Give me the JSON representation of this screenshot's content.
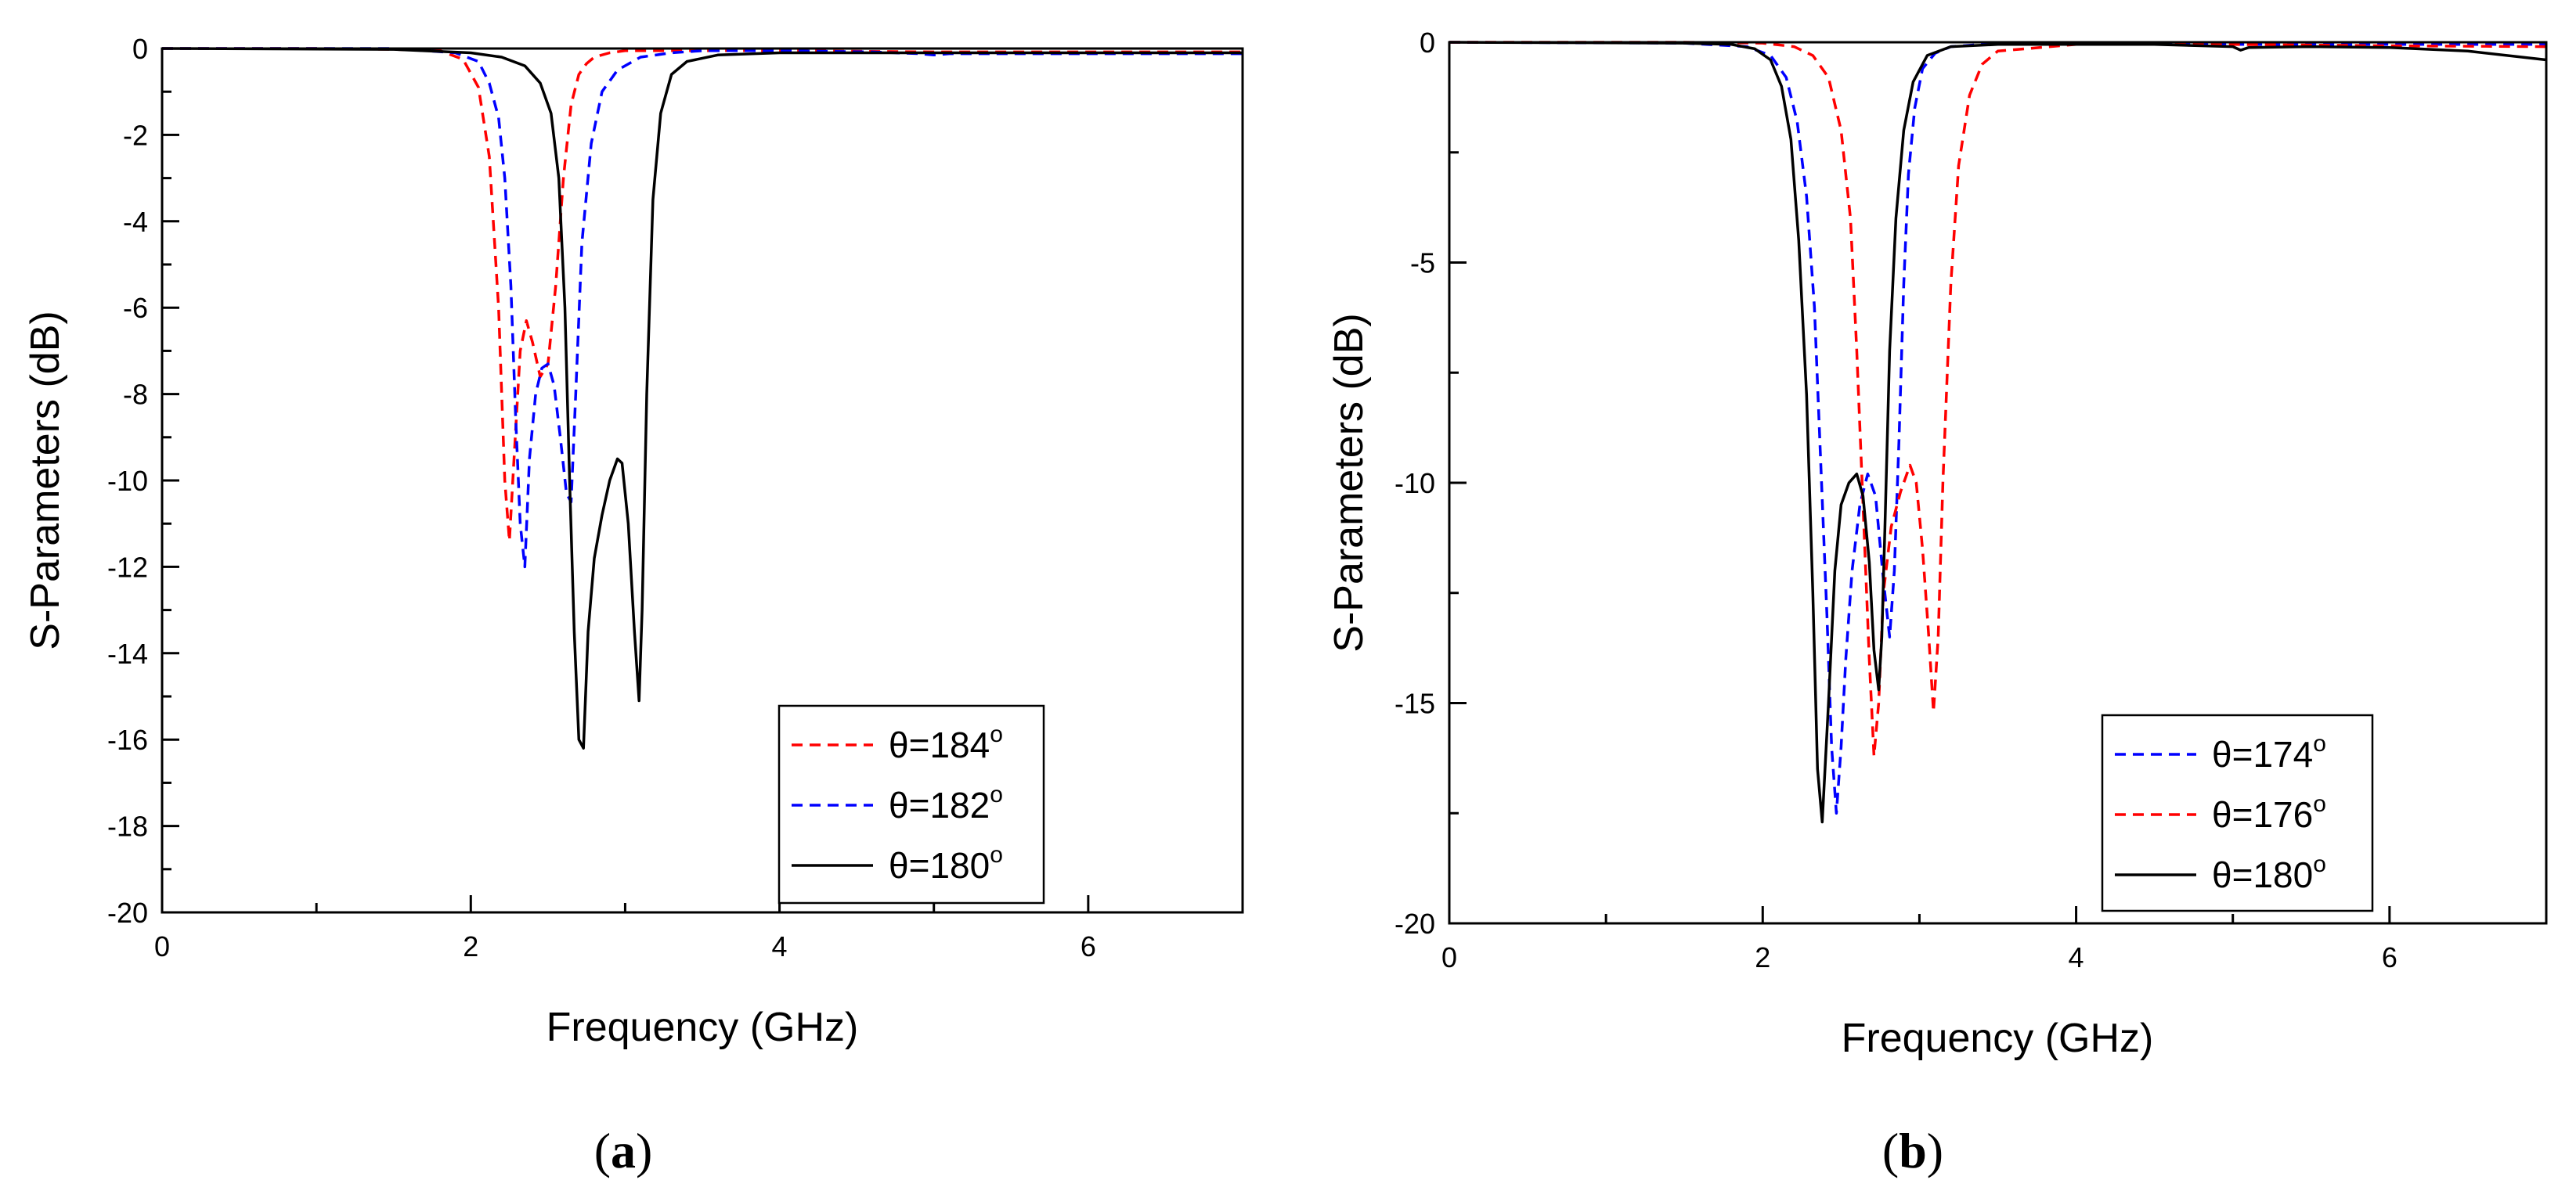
{
  "colors": {
    "red": "#ff0000",
    "blue": "#0000ff",
    "black": "#000000"
  },
  "chart_data": [
    {
      "type": "line",
      "panel": "a",
      "caption": {
        "open": "(",
        "letter": "a",
        "close": ")"
      },
      "title": "",
      "xlabel": "Frequency (GHz)",
      "ylabel": "S-Parameters (dB)",
      "xlim": [
        0,
        7
      ],
      "ylim": [
        -20,
        0
      ],
      "xticks": [
        0,
        2,
        4,
        6
      ],
      "yticks": [
        0,
        -2,
        -4,
        -6,
        -8,
        -10,
        -12,
        -14,
        -16,
        -18,
        -20
      ],
      "legend_position": "bottom-right",
      "series": [
        {
          "name": "θ=184",
          "theta": "θ=184",
          "sup": "o",
          "color": "#ff0000",
          "dash": "dashed",
          "x": [
            0,
            1.0,
            1.5,
            1.8,
            1.95,
            2.05,
            2.12,
            2.18,
            2.22,
            2.25,
            2.28,
            2.32,
            2.36,
            2.4,
            2.45,
            2.5,
            2.55,
            2.6,
            2.65,
            2.7,
            2.75,
            2.8,
            2.9,
            3.0,
            3.2,
            3.5,
            4.0,
            5.0,
            6.0,
            7.0
          ],
          "y": [
            0,
            0,
            -0.02,
            -0.05,
            -0.25,
            -0.9,
            -2.5,
            -6.0,
            -10.0,
            -11.4,
            -9.5,
            -7.0,
            -6.3,
            -6.8,
            -7.6,
            -7.3,
            -5.5,
            -3.0,
            -1.3,
            -0.6,
            -0.35,
            -0.2,
            -0.1,
            -0.05,
            -0.05,
            -0.05,
            -0.05,
            -0.08,
            -0.08,
            -0.08
          ]
        },
        {
          "name": "θ=182",
          "theta": "θ=182",
          "sup": "o",
          "color": "#0000ff",
          "dash": "dashed",
          "x": [
            0,
            1.5,
            1.9,
            2.05,
            2.12,
            2.18,
            2.22,
            2.26,
            2.29,
            2.32,
            2.35,
            2.38,
            2.42,
            2.46,
            2.5,
            2.54,
            2.58,
            2.62,
            2.65,
            2.68,
            2.72,
            2.78,
            2.85,
            2.95,
            3.1,
            3.3,
            3.5,
            4.0,
            4.6,
            4.9,
            5.0,
            5.1,
            5.5,
            6.0,
            7.0
          ],
          "y": [
            0,
            0,
            -0.1,
            -0.3,
            -0.8,
            -1.6,
            -3.0,
            -5.5,
            -8.5,
            -11.0,
            -12.0,
            -9.5,
            -8.0,
            -7.4,
            -7.3,
            -7.8,
            -9.0,
            -10.3,
            -10.5,
            -8.0,
            -4.5,
            -2.2,
            -1.0,
            -0.5,
            -0.2,
            -0.1,
            -0.05,
            -0.05,
            -0.08,
            -0.12,
            -0.15,
            -0.12,
            -0.12,
            -0.12,
            -0.12
          ]
        },
        {
          "name": "θ=180",
          "theta": "θ=180",
          "sup": "o",
          "color": "#000000",
          "dash": "solid",
          "x": [
            0,
            1.5,
            2.0,
            2.2,
            2.35,
            2.45,
            2.52,
            2.57,
            2.61,
            2.64,
            2.67,
            2.7,
            2.73,
            2.76,
            2.8,
            2.85,
            2.9,
            2.95,
            2.98,
            3.02,
            3.06,
            3.09,
            3.11,
            3.14,
            3.18,
            3.23,
            3.3,
            3.4,
            3.6,
            4.0,
            5.0,
            6.0,
            7.0
          ],
          "y": [
            0,
            -0.02,
            -0.1,
            -0.2,
            -0.4,
            -0.8,
            -1.5,
            -3.0,
            -6.0,
            -10.0,
            -13.5,
            -16.0,
            -16.2,
            -13.5,
            -11.8,
            -10.8,
            -10.0,
            -9.5,
            -9.6,
            -11.0,
            -13.5,
            -15.1,
            -13.0,
            -8.0,
            -3.5,
            -1.5,
            -0.6,
            -0.3,
            -0.15,
            -0.1,
            -0.1,
            -0.1,
            -0.1
          ]
        }
      ]
    },
    {
      "type": "line",
      "panel": "b",
      "caption": {
        "open": "(",
        "letter": "b",
        "close": ")"
      },
      "title": "",
      "xlabel": "Frequency (GHz)",
      "ylabel": "S-Parameters (dB)",
      "xlim": [
        0,
        7
      ],
      "ylim": [
        -20,
        0
      ],
      "xticks": [
        0,
        2,
        4,
        6
      ],
      "yticks": [
        0,
        -5,
        -10,
        -15,
        -20
      ],
      "legend_position": "bottom-right",
      "series": [
        {
          "name": "θ=174",
          "theta": "θ=174",
          "sup": "o",
          "color": "#0000ff",
          "dash": "dashed",
          "x": [
            0,
            1.5,
            1.9,
            2.05,
            2.15,
            2.22,
            2.28,
            2.33,
            2.37,
            2.41,
            2.44,
            2.47,
            2.5,
            2.53,
            2.57,
            2.62,
            2.67,
            2.72,
            2.77,
            2.81,
            2.84,
            2.87,
            2.9,
            2.93,
            2.97,
            3.02,
            3.1,
            3.2,
            3.4,
            4.0,
            5.0,
            6.0,
            7.0
          ],
          "y": [
            0,
            -0.02,
            -0.1,
            -0.3,
            -0.8,
            -1.8,
            -3.5,
            -6.0,
            -9.5,
            -13.0,
            -16.0,
            -17.5,
            -16.0,
            -14.0,
            -12.0,
            -10.5,
            -9.8,
            -10.3,
            -12.2,
            -13.5,
            -12.0,
            -9.0,
            -5.5,
            -3.0,
            -1.5,
            -0.6,
            -0.25,
            -0.1,
            -0.05,
            -0.05,
            -0.05,
            -0.05,
            -0.05
          ]
        },
        {
          "name": "θ=176",
          "theta": "θ=176",
          "sup": "o",
          "color": "#ff0000",
          "dash": "dashed",
          "x": [
            0,
            1.5,
            2.0,
            2.2,
            2.32,
            2.42,
            2.5,
            2.56,
            2.6,
            2.64,
            2.68,
            2.71,
            2.74,
            2.77,
            2.82,
            2.88,
            2.94,
            2.98,
            3.02,
            3.06,
            3.09,
            3.12,
            3.15,
            3.2,
            3.25,
            3.32,
            3.4,
            3.5,
            4.0,
            5.0,
            6.0,
            7.0
          ],
          "y": [
            0,
            0,
            -0.02,
            -0.1,
            -0.3,
            -0.8,
            -2.0,
            -4.0,
            -7.0,
            -10.5,
            -14.0,
            -16.2,
            -15.0,
            -12.5,
            -11.0,
            -10.2,
            -9.6,
            -10.0,
            -11.5,
            -13.5,
            -15.2,
            -13.5,
            -10.0,
            -5.5,
            -2.8,
            -1.2,
            -0.5,
            -0.2,
            -0.05,
            -0.05,
            -0.08,
            -0.1
          ]
        },
        {
          "name": "θ=180",
          "theta": "θ=180",
          "sup": "o",
          "color": "#000000",
          "dash": "solid",
          "x": [
            0,
            1.5,
            1.8,
            1.95,
            2.05,
            2.12,
            2.18,
            2.23,
            2.28,
            2.32,
            2.35,
            2.38,
            2.42,
            2.46,
            2.5,
            2.55,
            2.6,
            2.64,
            2.68,
            2.71,
            2.74,
            2.76,
            2.78,
            2.81,
            2.85,
            2.9,
            2.96,
            3.05,
            3.2,
            3.5,
            4.0,
            4.5,
            5.0,
            5.05,
            5.1,
            5.5,
            6.0,
            6.5,
            7.0
          ],
          "y": [
            0,
            -0.02,
            -0.05,
            -0.15,
            -0.4,
            -1.0,
            -2.2,
            -4.5,
            -8.0,
            -12.5,
            -16.5,
            -17.7,
            -15.0,
            -12.0,
            -10.5,
            -10.0,
            -9.8,
            -10.3,
            -11.8,
            -13.8,
            -14.7,
            -13.5,
            -11.0,
            -7.0,
            -4.0,
            -2.0,
            -0.9,
            -0.3,
            -0.1,
            -0.05,
            -0.05,
            -0.05,
            -0.1,
            -0.18,
            -0.12,
            -0.1,
            -0.12,
            -0.2,
            -0.4
          ]
        }
      ]
    }
  ]
}
